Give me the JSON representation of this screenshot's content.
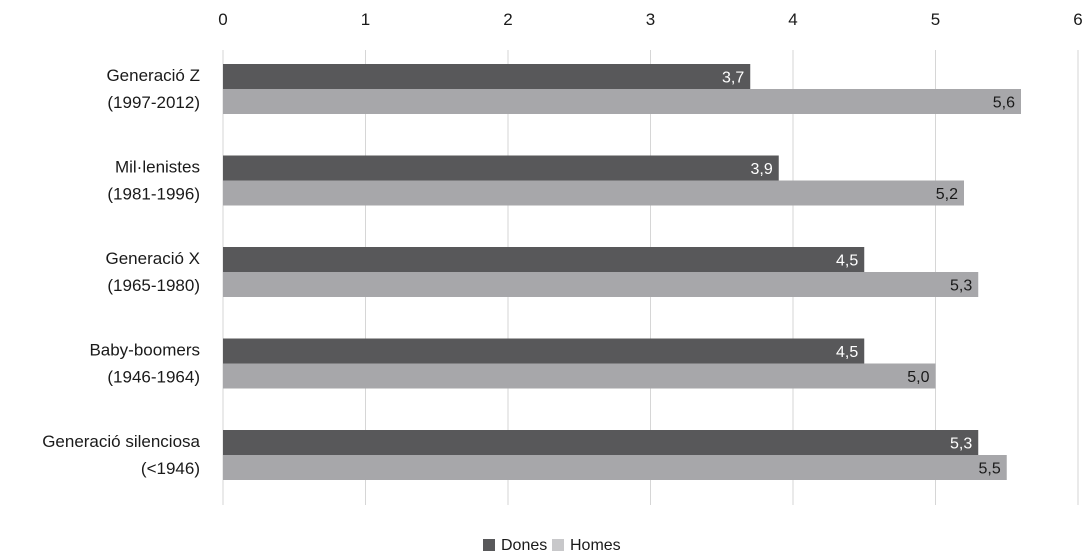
{
  "chart_data": {
    "type": "bar",
    "orientation": "horizontal",
    "categories": [
      [
        "Generació Z",
        "(1997-2012)"
      ],
      [
        "Mil·lenistes",
        "(1981-1996)"
      ],
      [
        "Generació X",
        "(1965-1980)"
      ],
      [
        "Baby-boomers",
        "(1946-1964)"
      ],
      [
        "Generació silenciosa",
        "(<1946)"
      ]
    ],
    "series": [
      {
        "name": "Dones",
        "color": "#58585a",
        "label_color": "#ffffff",
        "values": [
          3.7,
          3.9,
          4.5,
          4.5,
          5.3
        ],
        "labels": [
          "3,7",
          "3,9",
          "4,5",
          "4,5",
          "5,3"
        ]
      },
      {
        "name": "Homes",
        "color": "#a7a7aa",
        "label_color": "#1a1a1a",
        "values": [
          5.6,
          5.2,
          5.3,
          5.0,
          5.5
        ],
        "labels": [
          "5,6",
          "5,2",
          "5,3",
          "5,0",
          "5,5"
        ]
      }
    ],
    "xlim": [
      0,
      6
    ],
    "ticks": [
      0,
      1,
      2,
      3,
      4,
      5,
      6
    ],
    "tick_labels": [
      "0",
      "1",
      "2",
      "3",
      "4",
      "5",
      "6"
    ],
    "axis_position": "top",
    "grid": true,
    "grid_color": "#d6d6d6",
    "legend_position": "bottom-center",
    "legend_colors": [
      "#58585a",
      "#c8c8ca"
    ]
  }
}
